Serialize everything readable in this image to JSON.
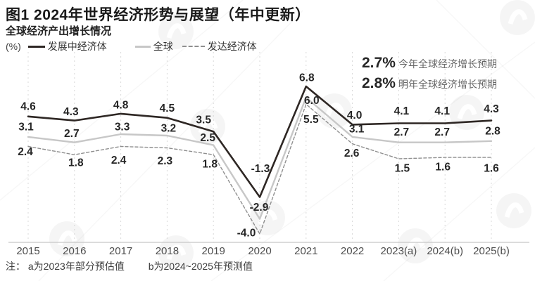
{
  "header": {
    "title": "图1 2024年世界经济形势与展望（年中更新）",
    "subtitle": "全球经济产出增长情况",
    "unit_label": "(%)"
  },
  "legend": [
    {
      "label": "发展中经济体",
      "swatch": "solid-dark"
    },
    {
      "label": "全球",
      "swatch": "solid-gray"
    },
    {
      "label": "发达经济体",
      "swatch": "dashed-gray"
    }
  ],
  "annotations": [
    {
      "value": "2.7%",
      "text": "今年全球经济增长预期"
    },
    {
      "value": "2.8%",
      "text": "明年全球经济增长预期"
    }
  ],
  "note": {
    "prefix": "注：",
    "items": [
      "a为2023年部分预估值",
      "b为2024~2025年预测值"
    ]
  },
  "colors": {
    "line_developing": "#2E2724",
    "line_global": "#C7C7C7",
    "line_developed": "#8F8F8F",
    "gridline": "#D8D8D8",
    "axis": "#C8C8C8",
    "data_label": "#262626",
    "tick_label": "#4D4D4D"
  },
  "chart_data": {
    "type": "line",
    "title": "全球经济产出增长情况",
    "ylabel": "(%)",
    "xlabel": "",
    "ylim": [
      -4.6,
      9.2
    ],
    "grid": "vertical-dashed",
    "legend_position": "top",
    "categories": [
      "2015",
      "2016",
      "2017",
      "2018",
      "2019",
      "2020",
      "2021",
      "2022",
      "2023(a)",
      "2024(b)",
      "2025(b)"
    ],
    "series": [
      {
        "name": "发展中经济体",
        "style": "solid",
        "color": "#2E2724",
        "width": 2.6,
        "values": [
          4.6,
          4.3,
          4.8,
          4.5,
          3.5,
          -1.3,
          6.8,
          4.0,
          4.1,
          4.1,
          4.3
        ],
        "label_dx": [
          0,
          -5,
          0,
          0,
          -14,
          1,
          1,
          3,
          4,
          -4,
          0
        ],
        "label_dy": [
          -15,
          -13,
          -13,
          -14,
          -17,
          -41,
          -13,
          -14,
          -18,
          -18,
          -17
        ]
      },
      {
        "name": "全球",
        "style": "solid",
        "color": "#C7C7C7",
        "width": 2.4,
        "values": [
          3.1,
          2.7,
          3.3,
          3.2,
          2.5,
          -2.9,
          6.0,
          3.1,
          2.7,
          2.7,
          2.8
        ],
        "label_dx": [
          -3,
          -4,
          2,
          2,
          -8,
          -1,
          8,
          6,
          4,
          -4,
          2
        ],
        "label_dy": [
          -15,
          -13,
          -11,
          -11,
          -11,
          -17,
          4,
          -12,
          -15,
          -15,
          -15
        ]
      },
      {
        "name": "发达经济体",
        "style": "dashed",
        "color": "#8F8F8F",
        "width": 1.4,
        "values": [
          2.4,
          1.8,
          2.4,
          2.3,
          1.8,
          -4.0,
          5.5,
          2.6,
          1.5,
          1.6,
          1.6
        ],
        "label_dx": [
          -4,
          2,
          -3,
          -3,
          -5,
          -19,
          7,
          -1,
          5,
          -3,
          0
        ],
        "label_dy": [
          7,
          11,
          19,
          18,
          13,
          -2,
          21,
          13,
          13,
          13,
          15
        ]
      }
    ]
  }
}
